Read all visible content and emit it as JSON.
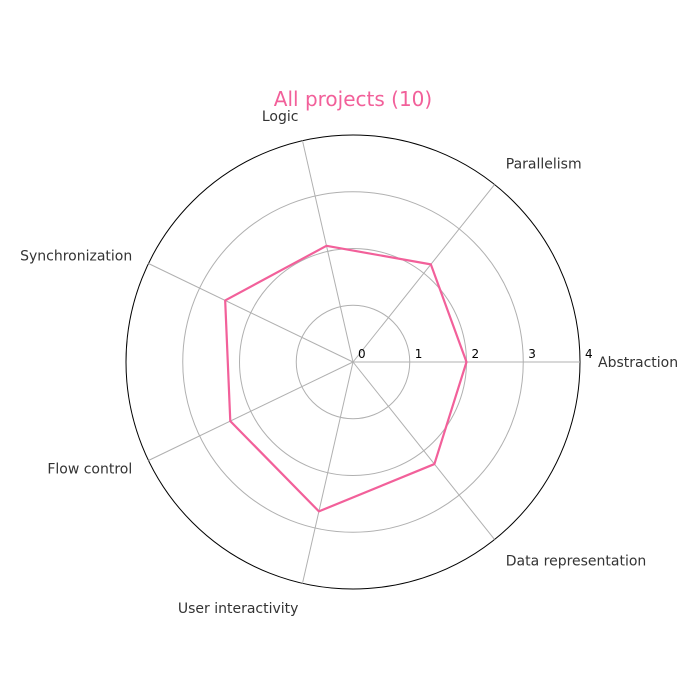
{
  "chart_data": {
    "type": "radar",
    "title": "All projects (10)",
    "axes": [
      "Abstraction",
      "Parallelism",
      "Logic",
      "Synchronization",
      "Flow control",
      "User interactivity",
      "Data representation"
    ],
    "rlim": [
      0,
      4
    ],
    "rticks": [
      "0",
      "1",
      "2",
      "3",
      "4"
    ],
    "series": [
      {
        "values": [
          2.0,
          2.2,
          2.1,
          2.5,
          2.4,
          2.7,
          2.3
        ]
      }
    ],
    "grid": true,
    "colors": {
      "series": "#f2609a",
      "title": "#f2609a",
      "grid": "#b0b0b0",
      "frame": "#000000"
    }
  }
}
